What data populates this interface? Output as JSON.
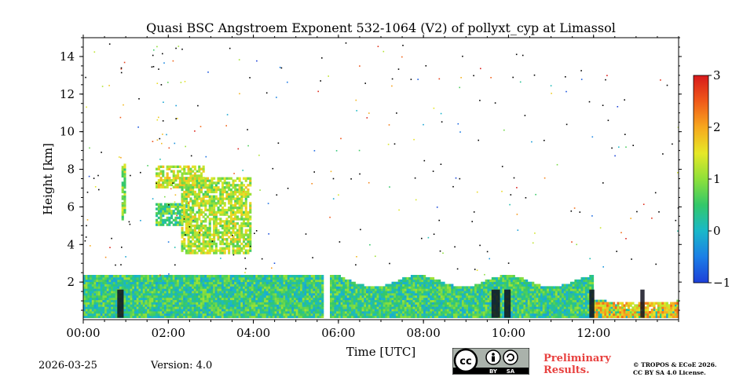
{
  "chart_data": {
    "type": "heatmap",
    "title": "Quasi BSC Angstroem Exponent 532-1064 (V2) of pollyxt_cyp at Limassol",
    "xlabel": "Time [UTC]",
    "ylabel": "Height [km]",
    "xlim_hours": [
      0,
      14
    ],
    "ylim_km": [
      0,
      15
    ],
    "x_ticks": [
      {
        "value": 0,
        "label": "00:00"
      },
      {
        "value": 2,
        "label": "02:00"
      },
      {
        "value": 4,
        "label": "04:00"
      },
      {
        "value": 6,
        "label": "06:00"
      },
      {
        "value": 8,
        "label": "08:00"
      },
      {
        "value": 10,
        "label": "10:00"
      },
      {
        "value": 12,
        "label": "12:00"
      }
    ],
    "y_ticks": [
      {
        "value": 2,
        "label": "2"
      },
      {
        "value": 4,
        "label": "4"
      },
      {
        "value": 6,
        "label": "6"
      },
      {
        "value": 8,
        "label": "8"
      },
      {
        "value": 10,
        "label": "10"
      },
      {
        "value": 12,
        "label": "12"
      },
      {
        "value": 14,
        "label": "14"
      }
    ],
    "colorbar": {
      "min": -1,
      "max": 3,
      "ticks": [
        {
          "value": -1,
          "label": "−1"
        },
        {
          "value": 0,
          "label": "0"
        },
        {
          "value": 1,
          "label": "1"
        },
        {
          "value": 2,
          "label": "2"
        },
        {
          "value": 3,
          "label": "3"
        }
      ],
      "colormap": [
        "#1d3fd8",
        "#1c7fe6",
        "#19b8c9",
        "#33c86a",
        "#8ee03a",
        "#e6e827",
        "#f7a81e",
        "#f05a19",
        "#d7191c"
      ]
    },
    "data_gap_hours": [
      5.6,
      5.75
    ],
    "features": [
      {
        "name": "boundary layer",
        "t_start": 0.0,
        "t_end": 14.0,
        "h_bottom": 0.1,
        "h_top": 2.3,
        "value": 0.45
      },
      {
        "name": "elevated aerosol layer upper",
        "t_start": 1.7,
        "t_end": 2.8,
        "h_bottom": 7.0,
        "h_top": 8.2,
        "value": 1.3
      },
      {
        "name": "elevated aerosol layer lower",
        "t_start": 1.7,
        "t_end": 2.4,
        "h_bottom": 5.0,
        "h_top": 6.1,
        "value": 0.6
      },
      {
        "name": "descending plume",
        "t_start": 2.3,
        "t_end": 3.9,
        "h_bottom": 3.5,
        "h_top": 7.5,
        "value": 1.2
      },
      {
        "name": "early column",
        "t_start": 0.9,
        "t_end": 1.0,
        "h_bottom": 5.3,
        "h_top": 8.2,
        "value": 1.0
      },
      {
        "name": "afternoon thinning layer",
        "t_start": 12.0,
        "t_end": 14.0,
        "h_bottom": 0.1,
        "h_top": 0.9,
        "value": 1.8
      }
    ]
  },
  "footer": {
    "date": "2026-03-25",
    "version": "Version: 4.0",
    "preliminary_line1": "Preliminary",
    "preliminary_line2": "Results.",
    "copyright_line1": "© TROPOS & ECoE 2026.",
    "copyright_line2": "CC BY SA 4.0 License.",
    "license_badge": {
      "main": "cc",
      "by": "BY",
      "sa": "SA"
    }
  }
}
